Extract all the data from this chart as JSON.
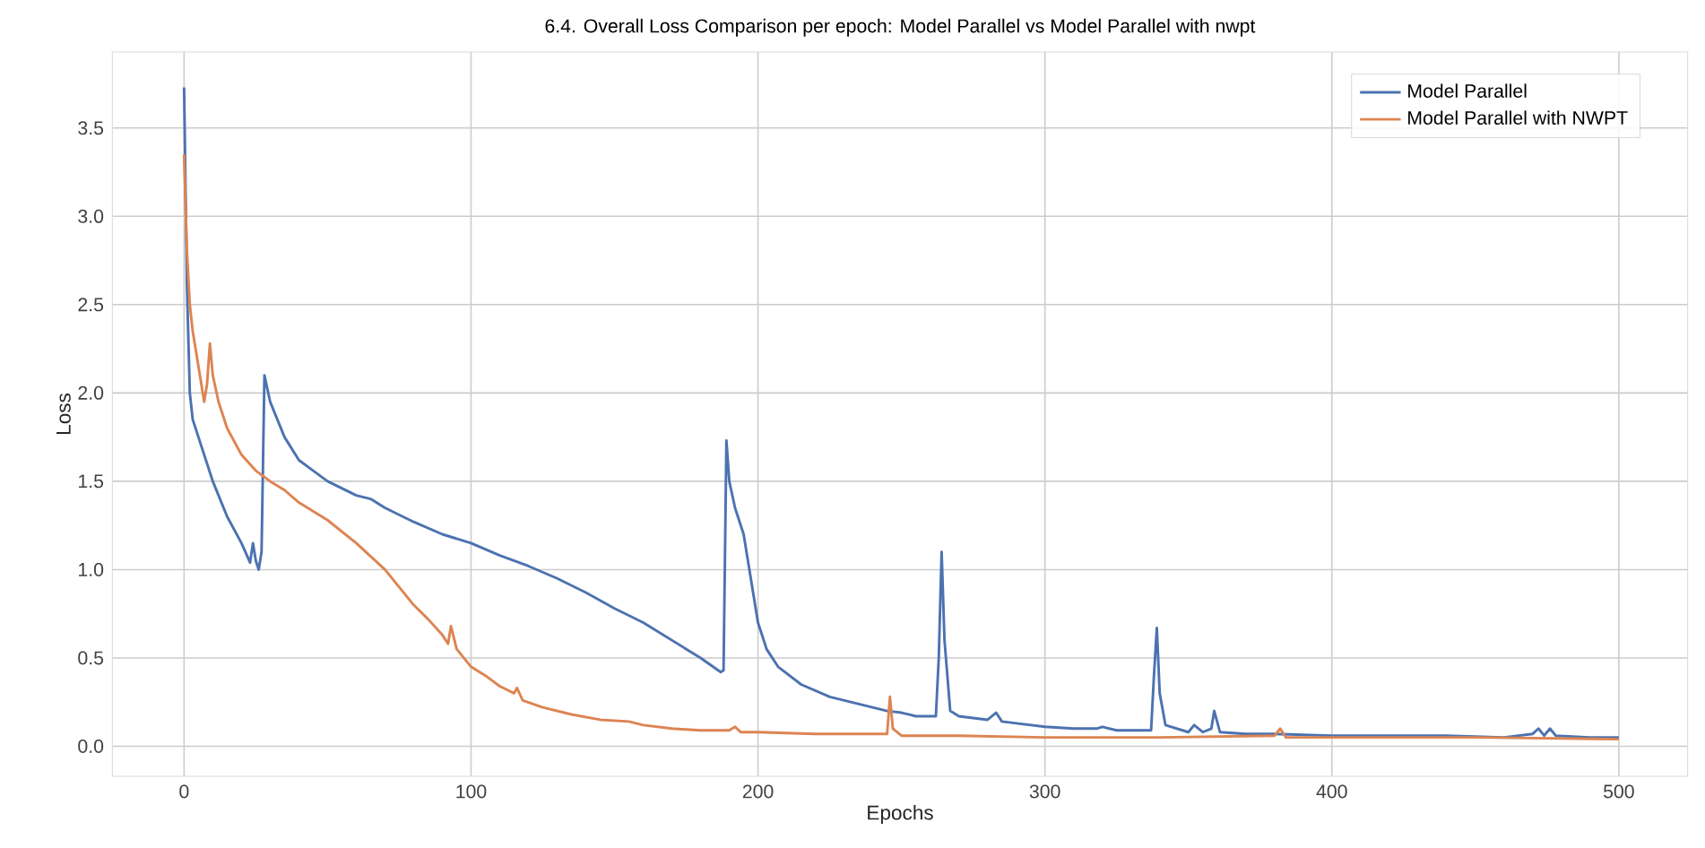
{
  "chart_data": {
    "type": "line",
    "title": "6.4. Overall Loss Comparison per epoch: Model Parallel vs Model Parallel with nwpt",
    "xlabel": "Epochs",
    "ylabel": "Loss",
    "xlim": [
      -25,
      524
    ],
    "ylim": [
      -0.17,
      3.93
    ],
    "xticks": [
      0,
      100,
      200,
      300,
      400,
      500
    ],
    "yticks": [
      {
        "value": 0,
        "label": "0.0"
      },
      0.5,
      {
        "value": 1,
        "label": "1.0"
      },
      1.5,
      {
        "value": 2,
        "label": "2.0"
      },
      2.5,
      {
        "value": 3,
        "label": "3.0"
      },
      3.5
    ],
    "grid": true,
    "legend": "top right",
    "line_style": "solid",
    "series": [
      {
        "name": "Model Parallel",
        "color": "#4c72b0",
        "x": [
          0,
          1,
          2,
          3,
          5,
          10,
          15,
          20,
          23,
          24,
          25,
          26,
          27,
          28,
          30,
          35,
          40,
          45,
          50,
          60,
          65,
          70,
          80,
          90,
          100,
          110,
          120,
          130,
          140,
          150,
          160,
          170,
          180,
          187,
          188,
          189,
          190,
          192,
          195,
          197,
          200,
          203,
          207,
          215,
          225,
          235,
          245,
          250,
          255,
          262,
          263,
          264,
          265,
          267,
          270,
          275,
          280,
          283,
          285,
          290,
          300,
          310,
          318,
          320,
          325,
          337,
          338,
          339,
          340,
          342,
          350,
          352,
          355,
          358,
          359,
          361,
          370,
          380,
          400,
          420,
          440,
          460,
          470,
          472,
          474,
          476,
          478,
          490,
          500
        ],
        "values": [
          3.73,
          2.6,
          2.0,
          1.85,
          1.75,
          1.5,
          1.3,
          1.15,
          1.04,
          1.15,
          1.05,
          1.0,
          1.1,
          2.1,
          1.95,
          1.75,
          1.62,
          1.56,
          1.5,
          1.42,
          1.4,
          1.35,
          1.27,
          1.2,
          1.15,
          1.08,
          1.02,
          0.95,
          0.87,
          0.78,
          0.7,
          0.6,
          0.5,
          0.42,
          0.43,
          1.73,
          1.5,
          1.35,
          1.2,
          1.0,
          0.7,
          0.55,
          0.45,
          0.35,
          0.28,
          0.24,
          0.2,
          0.19,
          0.17,
          0.17,
          0.5,
          1.1,
          0.6,
          0.2,
          0.17,
          0.16,
          0.15,
          0.19,
          0.14,
          0.13,
          0.11,
          0.1,
          0.1,
          0.11,
          0.09,
          0.09,
          0.4,
          0.67,
          0.3,
          0.12,
          0.08,
          0.12,
          0.08,
          0.1,
          0.2,
          0.08,
          0.07,
          0.07,
          0.06,
          0.06,
          0.06,
          0.05,
          0.07,
          0.1,
          0.06,
          0.1,
          0.06,
          0.05,
          0.05
        ]
      },
      {
        "name": "Model Parallel with NWPT",
        "color": "#dd8452",
        "x": [
          0,
          1,
          2,
          3,
          5,
          7,
          8,
          9,
          10,
          12,
          15,
          20,
          25,
          30,
          35,
          40,
          50,
          60,
          70,
          75,
          80,
          85,
          90,
          92,
          93,
          95,
          100,
          105,
          110,
          115,
          116,
          118,
          125,
          135,
          145,
          155,
          160,
          170,
          180,
          190,
          192,
          194,
          200,
          220,
          240,
          245,
          246,
          247,
          250,
          270,
          300,
          340,
          380,
          382,
          384,
          400,
          450,
          500
        ],
        "values": [
          3.35,
          2.8,
          2.5,
          2.35,
          2.15,
          1.95,
          2.05,
          2.28,
          2.1,
          1.95,
          1.8,
          1.65,
          1.56,
          1.5,
          1.45,
          1.38,
          1.28,
          1.15,
          1.0,
          0.9,
          0.8,
          0.72,
          0.63,
          0.58,
          0.68,
          0.55,
          0.45,
          0.4,
          0.34,
          0.3,
          0.33,
          0.26,
          0.22,
          0.18,
          0.15,
          0.14,
          0.12,
          0.1,
          0.09,
          0.09,
          0.11,
          0.08,
          0.08,
          0.07,
          0.07,
          0.07,
          0.28,
          0.1,
          0.06,
          0.06,
          0.05,
          0.05,
          0.06,
          0.1,
          0.05,
          0.05,
          0.05,
          0.04
        ]
      }
    ]
  }
}
